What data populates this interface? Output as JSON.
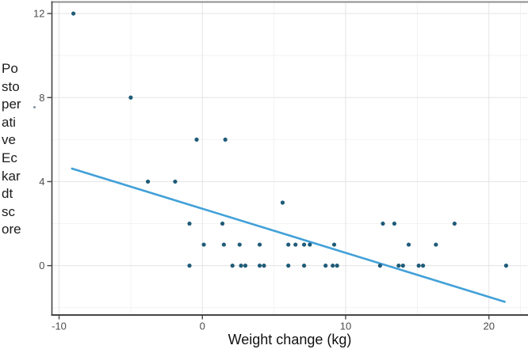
{
  "axes": {
    "x": {
      "label": "Weight change (kg)",
      "ticks": [
        -10,
        0,
        10,
        20
      ],
      "minor_gridlines": [
        -5,
        5,
        15
      ],
      "range": [
        -10.5,
        22.7
      ]
    },
    "y": {
      "label": "Postoperative Eckardt score",
      "label_wrapped_lines": [
        "Po",
        "sto",
        "per",
        "ati",
        "ve",
        "Ec",
        "kar",
        "dt",
        "sc",
        "ore"
      ],
      "ticks": [
        0,
        4,
        8,
        12
      ],
      "minor_gridlines": [
        -2,
        2,
        6,
        10
      ],
      "range": [
        -2.35,
        12.55
      ]
    }
  },
  "chart_data": {
    "type": "scatter",
    "title": "",
    "xlabel": "Weight change (kg)",
    "ylabel": "Postoperative Eckardt score",
    "xlim": [
      -10.5,
      22.7
    ],
    "ylim": [
      -2.35,
      12.55
    ],
    "x_ticks": [
      -10,
      0,
      10,
      20
    ],
    "x_minor_gridlines": [
      -5,
      5,
      15
    ],
    "y_ticks": [
      0,
      4,
      8,
      12
    ],
    "y_minor_gridlines": [
      -2,
      2,
      6,
      10
    ],
    "grid": "major+minor",
    "legend": "none",
    "points": [
      [
        -9,
        12
      ],
      [
        -5,
        8
      ],
      [
        -0.4,
        6
      ],
      [
        1.6,
        6
      ],
      [
        -3.8,
        4
      ],
      [
        -1.9,
        4
      ],
      [
        5.6,
        3
      ],
      [
        -0.9,
        2
      ],
      [
        1.4,
        2
      ],
      [
        12.6,
        2
      ],
      [
        13.4,
        2
      ],
      [
        17.6,
        2
      ],
      [
        0.1,
        1
      ],
      [
        1.5,
        1
      ],
      [
        2.6,
        1
      ],
      [
        4.0,
        1
      ],
      [
        6.0,
        1
      ],
      [
        6.5,
        1
      ],
      [
        7.1,
        1
      ],
      [
        7.5,
        1
      ],
      [
        9.2,
        1
      ],
      [
        14.4,
        1
      ],
      [
        16.3,
        1
      ],
      [
        -0.9,
        0
      ],
      [
        2.1,
        0
      ],
      [
        2.7,
        0
      ],
      [
        3.0,
        0
      ],
      [
        4.0,
        0
      ],
      [
        4.3,
        0
      ],
      [
        6.0,
        0
      ],
      [
        7.1,
        0
      ],
      [
        8.6,
        0
      ],
      [
        9.1,
        0
      ],
      [
        9.4,
        0
      ],
      [
        12.4,
        0
      ],
      [
        13.7,
        0
      ],
      [
        14.0,
        0
      ],
      [
        15.1,
        0
      ],
      [
        15.4,
        0
      ],
      [
        21.2,
        0
      ]
    ],
    "trend_line": {
      "type": "linear",
      "x_start": -9.1,
      "y_start": 4.62,
      "x_end": 21.1,
      "y_end": -1.72,
      "slope": -0.21,
      "intercept": 2.71
    },
    "colors": {
      "point": "#1f5b78",
      "trend_line": "#41a0d8",
      "major_gridline": "#e4e4e4",
      "minor_gridline": "#f2f2f2",
      "axis_line": "#454545",
      "top_border": "#8f8f8f",
      "tick_label": "#4d4d4d",
      "axis_label": "#1a1a1a",
      "background": "#ffffff"
    }
  }
}
